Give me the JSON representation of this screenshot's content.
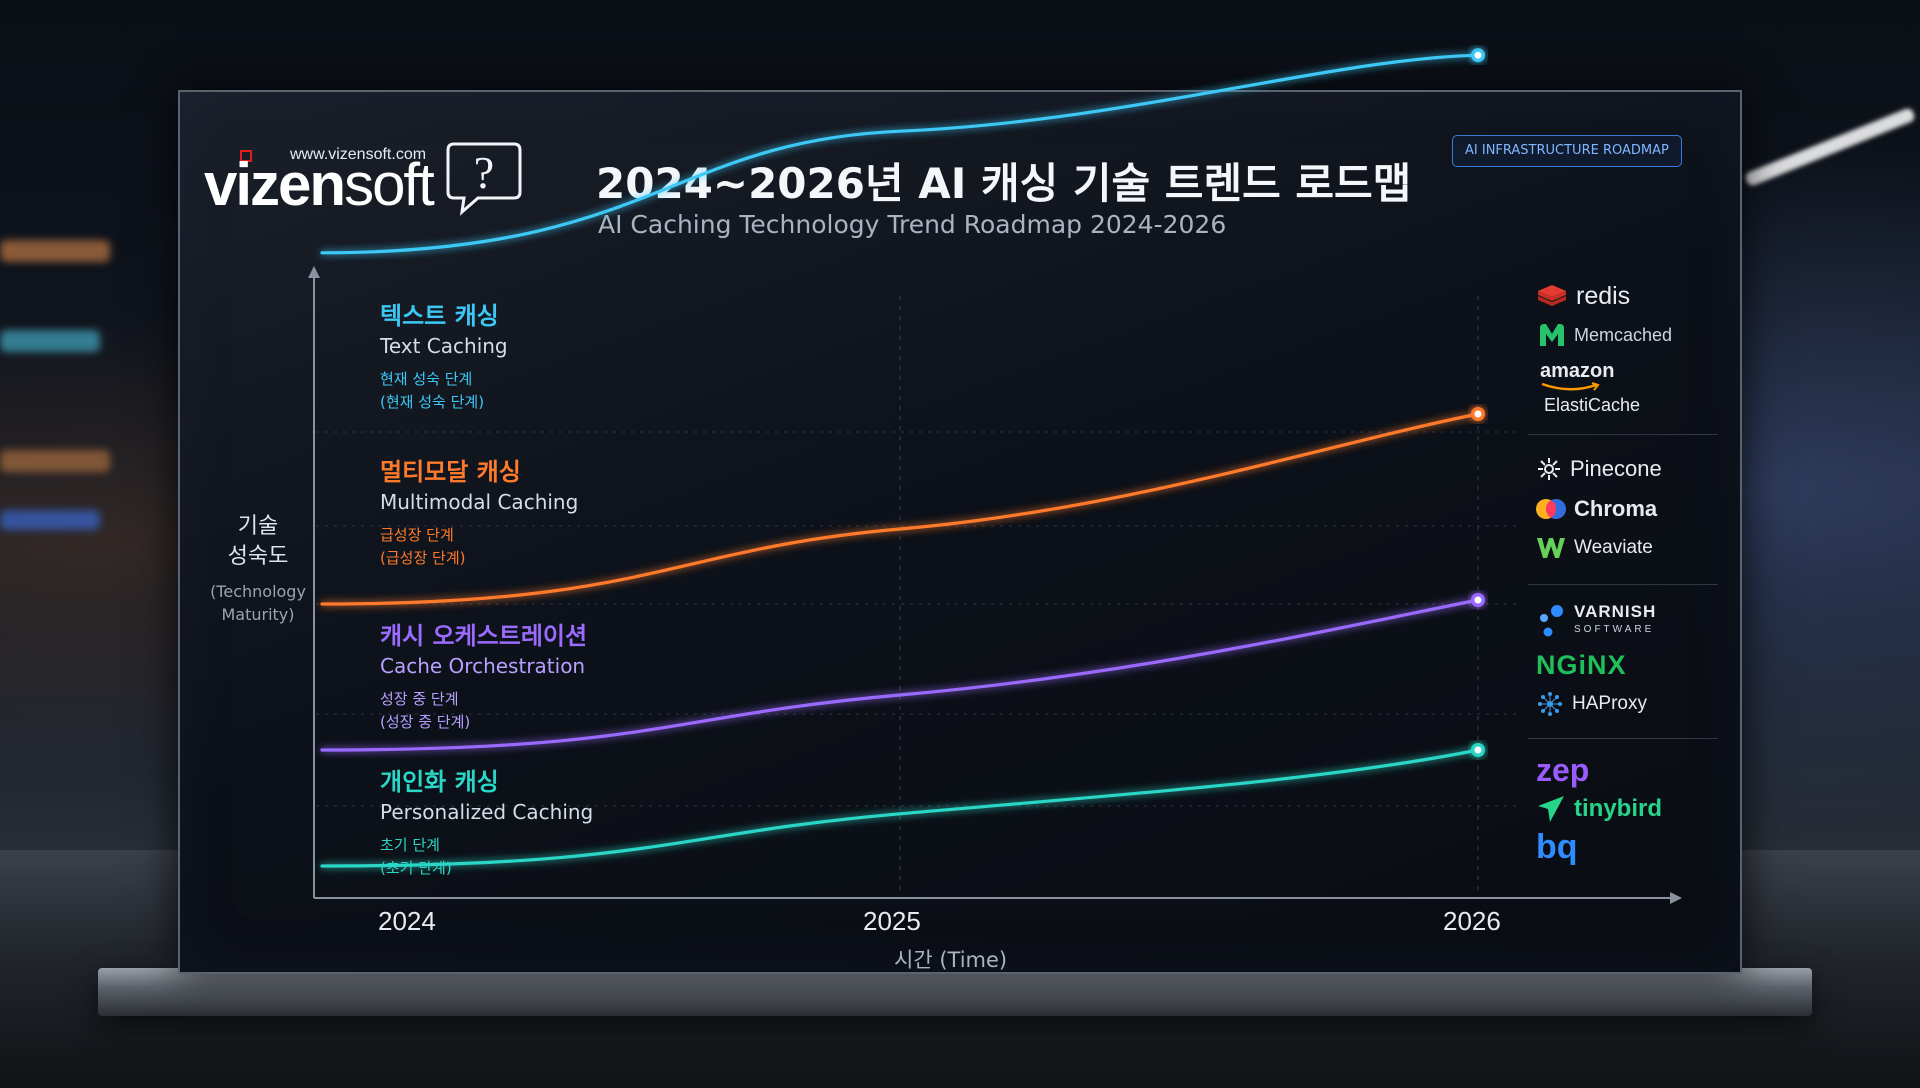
{
  "brand": {
    "url": "www.vizensoft.com",
    "name_bold": "vizen",
    "name_light": "soft",
    "mark": "?"
  },
  "title": "2024~2026년 AI 캐싱 기술 트렌드 로드맵",
  "subtitle": "AI Caching Technology Trend Roadmap 2024-2026",
  "badge": "AI INFRASTRUCTURE ROADMAP",
  "chart_data": {
    "type": "line",
    "x": [
      2024,
      2025,
      2026
    ],
    "x_ticks": [
      "2024",
      "2025",
      "2026"
    ],
    "xlabel": "시간 (Time)",
    "ylabel_ko": "기술 성숙도",
    "ylabel_en": "(Technology Maturity)",
    "grid": true,
    "series": [
      {
        "name_ko": "텍스트 캐싱",
        "name_en": "Text Caching",
        "stage": "현재 성숙 단계",
        "stage_paren": "(현재 성숙 단계)",
        "color": "#3cc8f5",
        "points": [
          [
            2024,
            0.22
          ],
          [
            2025,
            0.38
          ],
          [
            2026,
            0.48
          ]
        ]
      },
      {
        "name_ko": "멀티모달 캐싱",
        "name_en": "Multimodal Caching",
        "stage": "급성장 단계",
        "stage_paren": "(급성장 단계)",
        "color": "#ff7a2a",
        "points": [
          [
            2024,
            0.0
          ],
          [
            2025,
            0.15
          ],
          [
            2026,
            0.38
          ]
        ]
      },
      {
        "name_ko": "캐시 오케스트레이션",
        "name_en": "Cache Orchestration",
        "stage": "성장 중 단계",
        "stage_paren": "(성장 중 단계)",
        "color": "#9a6bff",
        "points": [
          [
            2024,
            0.0
          ],
          [
            2025,
            0.11
          ],
          [
            2026,
            0.3
          ]
        ]
      },
      {
        "name_ko": "개인화 캐싱",
        "name_en": "Personalized Caching",
        "stage": "초기 단계",
        "stage_paren": "(초기 단계)",
        "color": "#2ad6c6",
        "points": [
          [
            2024,
            0.0
          ],
          [
            2025,
            0.09
          ],
          [
            2026,
            0.2
          ]
        ]
      }
    ]
  },
  "vendors": {
    "group1": {
      "redis": "redis",
      "memcached": "Memcached",
      "amazon": "amazon",
      "elasticache": "ElastiCache"
    },
    "group2": {
      "pinecone": "Pinecone",
      "chroma": "Chroma",
      "weaviate": "Weaviate"
    },
    "group3": {
      "varnish": "VARNISH",
      "varnish_sub": "SOFTWARE",
      "nginx": "NGiNX",
      "haproxy": "HAProxy"
    },
    "group4": {
      "zep": "zep",
      "tinybird": "tinybird",
      "bq": "bq"
    }
  },
  "colors": {
    "text": "#3cc8f5",
    "multimodal": "#ff7a2a",
    "orchestration": "#9a6bff",
    "personalized": "#2ad6c6"
  }
}
